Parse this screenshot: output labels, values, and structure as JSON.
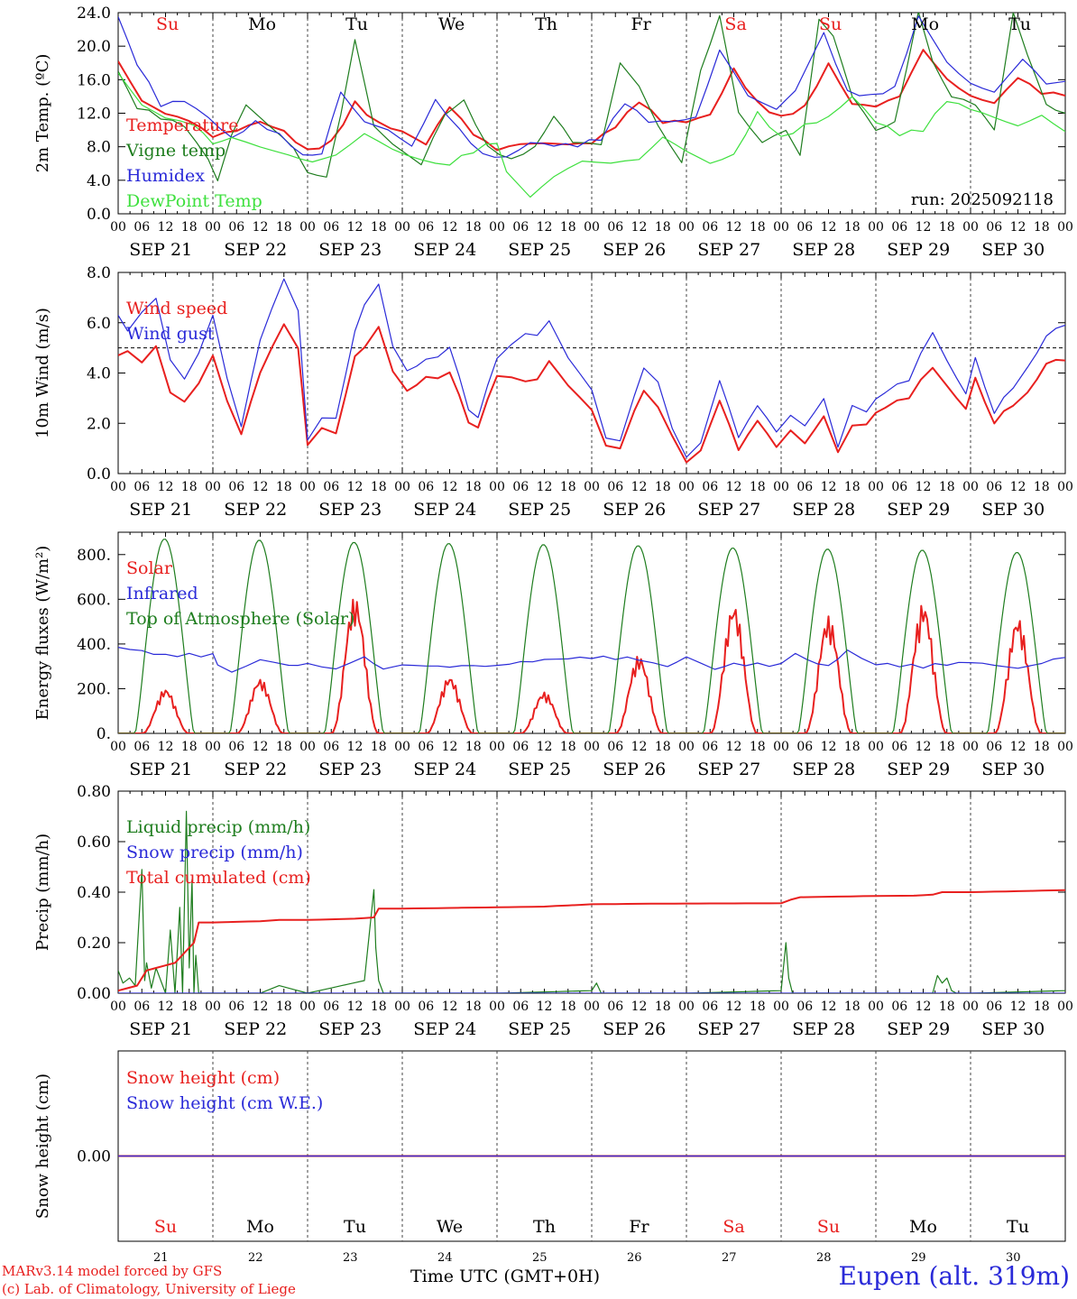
{
  "run_label": "run: 2025092118",
  "credit": [
    "MARv3.14 model forced by GFS",
    "(c) Lab. of Climatology, University of Liege"
  ],
  "station": "Eupen (alt. 319m)",
  "x_axis_title": "Time UTC (GMT+0H)",
  "hour_ticks": [
    "00",
    "06",
    "12",
    "18"
  ],
  "end_tick": "00",
  "dates": [
    "SEP 21",
    "SEP 22",
    "SEP 23",
    "SEP 24",
    "SEP 25",
    "SEP 26",
    "SEP 27",
    "SEP 28",
    "SEP 29",
    "SEP 30"
  ],
  "day_numbers": [
    "21",
    "22",
    "23",
    "24",
    "25",
    "26",
    "27",
    "28",
    "29",
    "30"
  ],
  "weekdays": [
    "Su",
    "Mo",
    "Tu",
    "We",
    "Th",
    "Fr",
    "Sa",
    "Su",
    "Mo",
    "Tu"
  ],
  "weekday_colors": [
    "#e8201f",
    "#000000",
    "#000000",
    "#000000",
    "#000000",
    "#000000",
    "#e8201f",
    "#e8201f",
    "#000000",
    "#000000"
  ],
  "colors": {
    "red": "#e8201f",
    "green": "#1e7d1e",
    "blue": "#2a2ad8",
    "lightgreen": "#3ee03e",
    "black": "#000000"
  },
  "chart_data": [
    {
      "type": "line",
      "ylabel": "2m Temp. (ºC)",
      "ylim": [
        0,
        24
      ],
      "yticks": [
        "0.0",
        "4.0",
        "8.0",
        "12.0",
        "16.0",
        "20.0",
        "24.0"
      ],
      "yticks_values": [
        0,
        4,
        8,
        12,
        16,
        20,
        24
      ],
      "x_days": [
        0,
        10
      ],
      "series": [
        {
          "name": "Temperature",
          "color": "red",
          "x": [
            0,
            0.25,
            0.5,
            0.75,
            1,
            1.25,
            1.5,
            1.75,
            2,
            2.25,
            2.5,
            2.75,
            3,
            3.25,
            3.5,
            3.75,
            4,
            4.25,
            4.5,
            4.75,
            5,
            5.25,
            5.5,
            5.75,
            6,
            6.25,
            6.5,
            6.75,
            7,
            7.25,
            7.5,
            7.75,
            8,
            8.25,
            8.5,
            8.75,
            9,
            9.25,
            9.5,
            9.75,
            10
          ],
          "values": [
            18.2,
            13.5,
            12,
            11.2,
            9.3,
            10,
            11,
            9.8,
            7.5,
            8.5,
            13.2,
            10.8,
            9.8,
            8.3,
            12.8,
            9.5,
            7.6,
            8.3,
            8.4,
            8.3,
            8.5,
            10.5,
            13.5,
            11,
            11,
            11.8,
            17.2,
            13.2,
            11.5,
            12.8,
            17.9,
            13.1,
            12.8,
            14,
            19.5,
            16,
            14,
            13.2,
            16.3,
            14.5,
            14.1
          ]
        },
        {
          "name": "Vigne temp",
          "color": "green",
          "x": [
            0,
            0.2,
            0.45,
            0.7,
            0.95,
            1.05,
            1.2,
            1.35,
            1.6,
            1.85,
            2,
            2.2,
            2.35,
            2.5,
            2.7,
            2.9,
            3.2,
            3.45,
            3.65,
            3.9,
            4.15,
            4.4,
            4.6,
            4.8,
            5.1,
            5.3,
            5.5,
            5.7,
            5.95,
            6.15,
            6.35,
            6.55,
            6.8,
            7.05,
            7.2,
            7.4,
            7.55,
            7.75,
            8,
            8.2,
            8.45,
            8.6,
            8.8,
            9.05,
            9.25,
            9.45,
            9.6,
            9.8,
            10
          ],
          "values": [
            17,
            12.8,
            11.5,
            10.5,
            6.5,
            4,
            9.5,
            13,
            10.5,
            8,
            5,
            4.5,
            12,
            21,
            10.5,
            8.5,
            6,
            12,
            13.5,
            8,
            6.5,
            8,
            11.5,
            8.5,
            8,
            18,
            15,
            10.5,
            6,
            17,
            23.5,
            12,
            8.5,
            10,
            7,
            23,
            21,
            14,
            10,
            10.8,
            24,
            18,
            14,
            13,
            10,
            24,
            19,
            13,
            12
          ]
        },
        {
          "name": "Humidex",
          "color": "blue",
          "x": [
            0,
            0.2,
            0.45,
            0.7,
            0.95,
            1.2,
            1.45,
            1.7,
            1.95,
            2.15,
            2.35,
            2.6,
            2.85,
            3.1,
            3.35,
            3.6,
            3.85,
            4.1,
            4.35,
            4.6,
            4.85,
            5.1,
            5.35,
            5.6,
            5.85,
            6.1,
            6.35,
            6.65,
            6.95,
            7.15,
            7.45,
            7.7,
            7.95,
            8.2,
            8.45,
            8.75,
            9,
            9.25,
            9.55,
            9.8,
            10
          ],
          "values": [
            23.5,
            18,
            13,
            13.5,
            11.5,
            9,
            11,
            9.5,
            7,
            7,
            14.5,
            11,
            10,
            8,
            13.5,
            10,
            7,
            6.7,
            8.5,
            8.2,
            8.2,
            9,
            13.3,
            11,
            11,
            11.5,
            19.5,
            14,
            12.5,
            14.5,
            21.5,
            14.5,
            14,
            15,
            23.5,
            18,
            15.5,
            14.5,
            18.5,
            15.5,
            15.8
          ]
        },
        {
          "name": "DewPoint Temp",
          "color": "lightgreen",
          "x": [
            0,
            0.25,
            0.5,
            0.8,
            1,
            1.2,
            1.5,
            1.8,
            2.05,
            2.3,
            2.6,
            2.9,
            3.2,
            3.5,
            3.75,
            4,
            4.1,
            4.35,
            4.6,
            4.9,
            5.2,
            5.5,
            5.75,
            6,
            6.25,
            6.5,
            6.75,
            7,
            7.25,
            7.5,
            7.75,
            8,
            8.25,
            8.5,
            8.75,
            9,
            9.25,
            9.5,
            9.75,
            10
          ],
          "values": [
            16.8,
            13,
            11.5,
            10.5,
            8.5,
            9,
            8,
            7,
            6.2,
            7,
            9.5,
            7.5,
            6.5,
            6,
            7.5,
            8.6,
            5,
            2,
            4.5,
            6.3,
            6.2,
            6.5,
            9.2,
            7.5,
            6,
            7,
            12,
            9,
            10.5,
            11.5,
            14,
            11,
            9.5,
            10,
            13.5,
            12.5,
            11.5,
            10.5,
            11.8,
            9.8
          ]
        }
      ],
      "legend": [
        "Temperature",
        "Vigne temp",
        "Humidex",
        "DewPoint Temp"
      ]
    },
    {
      "type": "line",
      "ylabel": "10m Wind (m/s)",
      "ylim": [
        0,
        8
      ],
      "yticks": [
        "0.0",
        "2.0",
        "4.0",
        "6.0",
        "8.0"
      ],
      "yticks_values": [
        0,
        2,
        4,
        6,
        8
      ],
      "reference_line": 5,
      "series": [
        {
          "name": "Wind speed",
          "color": "red",
          "x": [
            0,
            0.1,
            0.25,
            0.4,
            0.55,
            0.7,
            0.85,
            1,
            1.15,
            1.3,
            1.5,
            1.75,
            1.9,
            2,
            2.15,
            2.3,
            2.5,
            2.6,
            2.75,
            2.9,
            3.05,
            3.25,
            3.5,
            3.7,
            3.8,
            4,
            4.3,
            4.55,
            4.75,
            5,
            5.15,
            5.3,
            5.45,
            5.55,
            5.7,
            5.85,
            6,
            6.15,
            6.35,
            6.55,
            6.75,
            6.95,
            7.1,
            7.25,
            7.45,
            7.6,
            7.75,
            7.9,
            8.1,
            8.35,
            8.6,
            8.75,
            8.95,
            9.05,
            9.25,
            9.45,
            9.6,
            9.8,
            10
          ],
          "values": [
            4.7,
            5,
            4.5,
            5.1,
            3.2,
            2.8,
            3.5,
            4.6,
            2.8,
            1.5,
            4,
            6,
            5,
            1.1,
            1.8,
            1.6,
            4.5,
            5,
            5.8,
            4,
            3.2,
            3.8,
            3.9,
            2,
            1.8,
            3.8,
            3.5,
            4.3,
            3.5,
            2.5,
            1.1,
            1,
            2.5,
            3.2,
            2.6,
            1.5,
            0.5,
            1,
            2.8,
            1,
            2,
            1.1,
            1.8,
            1.3,
            2.2,
            0.8,
            1.9,
            2,
            2.7,
            3.1,
            4.3,
            3.6,
            2.5,
            3.9,
            2,
            2.8,
            3.3,
            4.4,
            4.5
          ]
        },
        {
          "name": "Wind gust",
          "color": "blue",
          "x": [
            0,
            0.1,
            0.25,
            0.4,
            0.55,
            0.7,
            0.85,
            1,
            1.15,
            1.3,
            1.5,
            1.75,
            1.9,
            2,
            2.15,
            2.3,
            2.5,
            2.6,
            2.75,
            2.9,
            3.05,
            3.25,
            3.5,
            3.7,
            3.8,
            4,
            4.3,
            4.55,
            4.75,
            5,
            5.15,
            5.3,
            5.45,
            5.55,
            5.7,
            5.85,
            6,
            6.15,
            6.35,
            6.55,
            6.75,
            6.95,
            7.1,
            7.25,
            7.45,
            7.6,
            7.75,
            7.9,
            8.1,
            8.35,
            8.6,
            8.75,
            8.95,
            9.05,
            9.25,
            9.45,
            9.6,
            9.8,
            10
          ],
          "values": [
            6.3,
            5.8,
            6.5,
            7,
            4.5,
            3.7,
            4.7,
            6.2,
            3.7,
            1.8,
            5.3,
            7.8,
            6.5,
            1.3,
            2.2,
            2.2,
            5.5,
            6.7,
            7.5,
            5,
            4,
            4.5,
            4.9,
            2.5,
            2.2,
            4.5,
            5.4,
            5.9,
            4.6,
            3.3,
            1.4,
            1.3,
            3.1,
            4.1,
            3.6,
            1.8,
            0.7,
            1.3,
            3.6,
            1.5,
            2.6,
            1.7,
            2.4,
            2,
            2.9,
            1,
            2.7,
            2.5,
            3.3,
            3.8,
            5.7,
            4.6,
            3.1,
            4.7,
            2.4,
            3.5,
            4.3,
            5.5,
            5.9
          ]
        }
      ],
      "legend": [
        "Wind speed",
        "Wind gust"
      ]
    },
    {
      "type": "line",
      "ylabel": "Energy fluxes (W/m²)",
      "ylim": [
        0,
        900
      ],
      "yticks": [
        "0.",
        "200.",
        "400.",
        "600.",
        "800."
      ],
      "yticks_values": [
        0,
        200,
        400,
        600,
        800
      ],
      "series": [
        {
          "name": "Solar",
          "color": "red",
          "daily_peaks": [
            200,
            245,
            610,
            255,
            185,
            350,
            580,
            525,
            585,
            520
          ]
        },
        {
          "name": "Infrared",
          "color": "blue",
          "x": [
            0,
            0.5,
            1,
            1.05,
            1.2,
            1.5,
            1.8,
            2,
            2.3,
            2.6,
            2.8,
            3,
            3.5,
            4,
            4.5,
            5,
            5.5,
            5.8,
            6,
            6.3,
            6.5,
            7,
            7.15,
            7.5,
            7.7,
            8,
            8.5,
            9,
            9.5,
            10
          ],
          "values": [
            385,
            350,
            350,
            300,
            270,
            330,
            300,
            310,
            290,
            340,
            290,
            305,
            300,
            305,
            330,
            340,
            335,
            300,
            345,
            290,
            310,
            305,
            350,
            300,
            370,
            310,
            300,
            320,
            290,
            340
          ]
        },
        {
          "name": "Top of Atmosphere (Solar)",
          "color": "green",
          "daily_peaks": [
            870,
            865,
            855,
            850,
            845,
            840,
            830,
            825,
            820,
            810
          ]
        }
      ],
      "legend": [
        "Solar",
        "Infrared",
        "Top of Atmosphere (Solar)"
      ]
    },
    {
      "type": "line",
      "ylabel": "Precip (mm/h)",
      "ylim": [
        0,
        0.8
      ],
      "yticks": [
        "0.00",
        "0.20",
        "0.40",
        "0.60",
        "0.80"
      ],
      "yticks_values": [
        0,
        0.2,
        0.4,
        0.6,
        0.8
      ],
      "series": [
        {
          "name": "Liquid precip (mm/h)",
          "color": "green",
          "x": [
            0,
            0.05,
            0.12,
            0.18,
            0.25,
            0.28,
            0.3,
            0.35,
            0.4,
            0.5,
            0.55,
            0.6,
            0.65,
            0.68,
            0.72,
            0.75,
            0.78,
            0.8,
            0.82,
            0.85,
            0.88,
            0.9,
            1,
            1.5,
            1.7,
            2,
            2.6,
            2.7,
            2.72,
            2.75,
            2.8,
            2.9,
            3.5,
            4,
            5,
            5.05,
            5.1,
            6,
            7,
            7.05,
            7.08,
            7.12,
            7.2,
            8,
            8.6,
            8.65,
            8.7,
            8.75,
            8.8,
            8.85,
            9,
            10
          ],
          "values": [
            0.09,
            0.04,
            0.06,
            0.03,
            0.49,
            0.05,
            0.12,
            0.02,
            0.1,
            0,
            0.25,
            0,
            0.34,
            0,
            0.72,
            0.1,
            0.45,
            0,
            0.15,
            0,
            0,
            0,
            0,
            0,
            0.03,
            0,
            0.05,
            0.41,
            0.18,
            0.05,
            0,
            0,
            0,
            0,
            0.01,
            0.04,
            0,
            0,
            0.01,
            0.2,
            0.06,
            0,
            0,
            0,
            0,
            0.07,
            0.04,
            0.06,
            0.01,
            0,
            0,
            0.01
          ]
        },
        {
          "name": "Snow precip (mm/h)",
          "color": "blue",
          "values_const": 0
        },
        {
          "name": "Total cumulated (cm)",
          "color": "red",
          "x": [
            0,
            0.2,
            0.3,
            0.5,
            0.6,
            0.7,
            0.8,
            0.85,
            0.9,
            1,
            1.5,
            1.7,
            2,
            2.5,
            2.7,
            2.75,
            3,
            4,
            4.5,
            5,
            5.5,
            6,
            7,
            7.1,
            7.2,
            8,
            8.4,
            8.6,
            8.7,
            9,
            10
          ],
          "values": [
            0.01,
            0.03,
            0.09,
            0.11,
            0.12,
            0.16,
            0.2,
            0.28,
            0.28,
            0.28,
            0.285,
            0.29,
            0.29,
            0.295,
            0.3,
            0.335,
            0.335,
            0.34,
            0.343,
            0.352,
            0.354,
            0.355,
            0.356,
            0.37,
            0.38,
            0.385,
            0.386,
            0.39,
            0.4,
            0.4,
            0.408
          ]
        }
      ],
      "legend": [
        "Liquid precip (mm/h)",
        "Snow precip (mm/h)",
        "Total cumulated (cm)"
      ]
    },
    {
      "type": "line",
      "ylabel": "Snow height (cm)",
      "yticks": [
        "0.00"
      ],
      "yticks_values": [
        0
      ],
      "series": [
        {
          "name": "Snow height (cm)",
          "color": "red",
          "values_const": 0
        },
        {
          "name": "Snow height (cm W.E.)",
          "color": "blue",
          "values_const": 0
        }
      ],
      "legend": [
        "Snow height (cm)",
        "Snow height (cm W.E.)"
      ]
    }
  ]
}
